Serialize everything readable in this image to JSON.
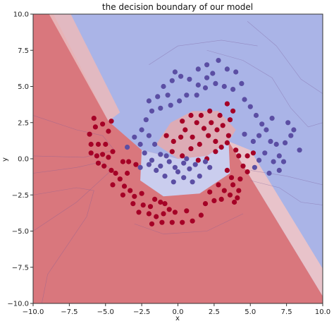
{
  "chart_data": {
    "type": "scatter",
    "title": "the decision boundary of our model",
    "xlabel": "x",
    "ylabel": "y",
    "xlim": [
      -10.0,
      10.0
    ],
    "ylim": [
      -10.0,
      10.0
    ],
    "xticks": [
      "−10.0",
      "−7.5",
      "−5.0",
      "−2.5",
      "0.0",
      "2.5",
      "5.0",
      "7.5",
      "10.0"
    ],
    "yticks": [
      "−10.0",
      "−7.5",
      "−5.0",
      "−2.5",
      "0.0",
      "2.5",
      "5.0",
      "7.5",
      "10.0"
    ],
    "grid": false,
    "background": "filled decision-function contour (coolwarm colormap)",
    "colors": {
      "class_red": "#a50026",
      "class_blue": "#5b4ea3",
      "region_red": "#d9777d",
      "region_blue": "#8f9fe0"
    },
    "series": [
      {
        "color": "#a50026",
        "points": [
          [
            -6.1,
            1.7
          ],
          [
            -5.7,
            2.2
          ],
          [
            -5.2,
            2.4
          ],
          [
            -4.8,
            1.9
          ],
          [
            -6.0,
            1.0
          ],
          [
            -5.5,
            1.0
          ],
          [
            -5.0,
            1.0
          ],
          [
            -4.5,
            0.5
          ],
          [
            -6.0,
            0.4
          ],
          [
            -5.6,
            0.2
          ],
          [
            -5.2,
            0.3
          ],
          [
            -4.8,
            0.1
          ],
          [
            -3.8,
            -0.2
          ],
          [
            -3.4,
            -0.2
          ],
          [
            -5.5,
            -0.3
          ],
          [
            -5.1,
            -0.5
          ],
          [
            -4.6,
            -0.8
          ],
          [
            -4.3,
            -1.0
          ],
          [
            -4.0,
            -1.4
          ],
          [
            -3.5,
            -1.0
          ],
          [
            -4.5,
            -1.8
          ],
          [
            -3.7,
            -1.9
          ],
          [
            -3.3,
            -2.2
          ],
          [
            -3.8,
            -2.5
          ],
          [
            -3.0,
            -2.6
          ],
          [
            -2.5,
            -2.4
          ],
          [
            -1.6,
            -2.8
          ],
          [
            -1.2,
            -3.0
          ],
          [
            -3.1,
            -3.1
          ],
          [
            -2.4,
            -3.2
          ],
          [
            -1.9,
            -3.3
          ],
          [
            -1.0,
            -3.8
          ],
          [
            -0.6,
            -3.5
          ],
          [
            -2.7,
            -3.7
          ],
          [
            -2.0,
            -3.8
          ],
          [
            -1.5,
            -4.0
          ],
          [
            -0.2,
            -3.7
          ],
          [
            0.6,
            -3.6
          ],
          [
            -1.8,
            -4.5
          ],
          [
            -1.1,
            -4.4
          ],
          [
            -0.4,
            -4.4
          ],
          [
            0.3,
            -4.4
          ],
          [
            1.0,
            -4.3
          ],
          [
            1.6,
            -3.9
          ],
          [
            1.9,
            -3.1
          ],
          [
            2.5,
            -2.9
          ],
          [
            3.0,
            -2.8
          ],
          [
            2.2,
            -2.3
          ],
          [
            2.8,
            -1.8
          ],
          [
            3.2,
            -2.2
          ],
          [
            3.6,
            -2.5
          ],
          [
            3.8,
            -1.8
          ],
          [
            4.2,
            -2.2
          ],
          [
            3.7,
            -1.3
          ],
          [
            4.3,
            -1.4
          ],
          [
            4.8,
            -0.9
          ],
          [
            3.4,
            -0.8
          ],
          [
            4.5,
            -0.5
          ],
          [
            4.2,
            0.2
          ],
          [
            4.8,
            0.2
          ],
          [
            5.2,
            0.4
          ],
          [
            4.0,
            0.6
          ],
          [
            3.0,
            0.8
          ],
          [
            3.4,
            1.1
          ],
          [
            2.6,
            1.2
          ],
          [
            3.5,
            1.6
          ],
          [
            2.1,
            1.6
          ],
          [
            2.7,
            2.0
          ],
          [
            1.8,
            2.1
          ],
          [
            3.1,
            2.3
          ],
          [
            3.6,
            2.7
          ],
          [
            2.3,
            2.5
          ],
          [
            1.3,
            2.5
          ],
          [
            2.9,
            3.0
          ],
          [
            3.8,
            3.3
          ],
          [
            3.4,
            3.8
          ],
          [
            1.6,
            3.0
          ],
          [
            2.2,
            3.3
          ],
          [
            0.9,
            3.0
          ],
          [
            0.3,
            2.6
          ],
          [
            0.5,
            2.0
          ],
          [
            0.2,
            1.5
          ],
          [
            -0.3,
            1.2
          ],
          [
            -0.8,
            1.6
          ],
          [
            1.0,
            1.5
          ],
          [
            1.5,
            1.0
          ],
          [
            0.9,
            0.7
          ],
          [
            -0.4,
            0.5
          ],
          [
            0.3,
            0.2
          ],
          [
            2.0,
            0.0
          ],
          [
            2.6,
            0.5
          ],
          [
            1.4,
            -0.1
          ],
          [
            -5.8,
            2.8
          ],
          [
            -4.6,
            2.6
          ],
          [
            -2.9,
            -0.4
          ],
          [
            3.9,
            -3.0
          ],
          [
            4.1,
            -2.7
          ],
          [
            -0.9,
            -3.1
          ]
        ]
      },
      {
        "color": "#5b4ea3",
        "points": [
          [
            -1.0,
            5.0
          ],
          [
            -0.4,
            5.4
          ],
          [
            0.2,
            5.7
          ],
          [
            0.8,
            5.5
          ],
          [
            1.4,
            5.1
          ],
          [
            2.0,
            5.6
          ],
          [
            2.6,
            5.2
          ],
          [
            3.2,
            5.0
          ],
          [
            3.8,
            4.8
          ],
          [
            4.4,
            5.2
          ],
          [
            2.0,
            6.5
          ],
          [
            2.8,
            6.8
          ],
          [
            1.4,
            6.2
          ],
          [
            3.4,
            6.2
          ],
          [
            4.0,
            6.0
          ],
          [
            -0.7,
            4.4
          ],
          [
            -1.4,
            4.3
          ],
          [
            -2.0,
            4.0
          ],
          [
            -1.8,
            3.3
          ],
          [
            -2.2,
            2.7
          ],
          [
            -0.5,
            3.7
          ],
          [
            0.1,
            4.0
          ],
          [
            0.6,
            4.4
          ],
          [
            -1.2,
            3.5
          ],
          [
            1.3,
            4.4
          ],
          [
            4.6,
            4.1
          ],
          [
            5.0,
            3.6
          ],
          [
            5.4,
            3.0
          ],
          [
            5.8,
            2.4
          ],
          [
            6.1,
            2.0
          ],
          [
            5.6,
            1.6
          ],
          [
            5.2,
            1.2
          ],
          [
            4.6,
            1.7
          ],
          [
            6.4,
            1.2
          ],
          [
            6.8,
            1.0
          ],
          [
            6.0,
            0.4
          ],
          [
            5.6,
            -0.1
          ],
          [
            6.6,
            -0.2
          ],
          [
            7.0,
            0.2
          ],
          [
            7.4,
            1.1
          ],
          [
            7.8,
            1.6
          ],
          [
            8.0,
            2.0
          ],
          [
            7.6,
            2.5
          ],
          [
            8.4,
            0.6
          ],
          [
            7.0,
            -0.8
          ],
          [
            6.3,
            -1.0
          ],
          [
            5.3,
            -0.6
          ],
          [
            -2.5,
            2.0
          ],
          [
            -3.0,
            1.5
          ],
          [
            -2.6,
            1.0
          ],
          [
            -2.0,
            1.6
          ],
          [
            -1.6,
            1.0
          ],
          [
            -2.3,
            0.4
          ],
          [
            -1.8,
            -0.1
          ],
          [
            -1.2,
            0.3
          ],
          [
            -0.6,
            -0.2
          ],
          [
            -0.2,
            -0.6
          ],
          [
            0.4,
            -0.3
          ],
          [
            0.8,
            -0.7
          ],
          [
            1.2,
            -0.4
          ],
          [
            -1.5,
            -0.8
          ],
          [
            -2.0,
            -0.4
          ],
          [
            -0.9,
            -1.2
          ],
          [
            -0.3,
            -1.6
          ],
          [
            0.4,
            -1.3
          ],
          [
            1.0,
            -1.6
          ],
          [
            1.5,
            -1.2
          ],
          [
            -2.6,
            -0.6
          ],
          [
            -1.2,
            -0.5
          ],
          [
            0.0,
            -0.9
          ],
          [
            2.2,
            -0.6
          ],
          [
            1.9,
            -0.2
          ],
          [
            0.6,
            0.0
          ],
          [
            -0.8,
            0.2
          ],
          [
            -3.5,
            0.8
          ],
          [
            1.9,
            4.9
          ],
          [
            -0.2,
            6.0
          ],
          [
            2.4,
            5.9
          ],
          [
            7.3,
            -0.2
          ],
          [
            6.5,
            2.8
          ]
        ]
      }
    ]
  }
}
